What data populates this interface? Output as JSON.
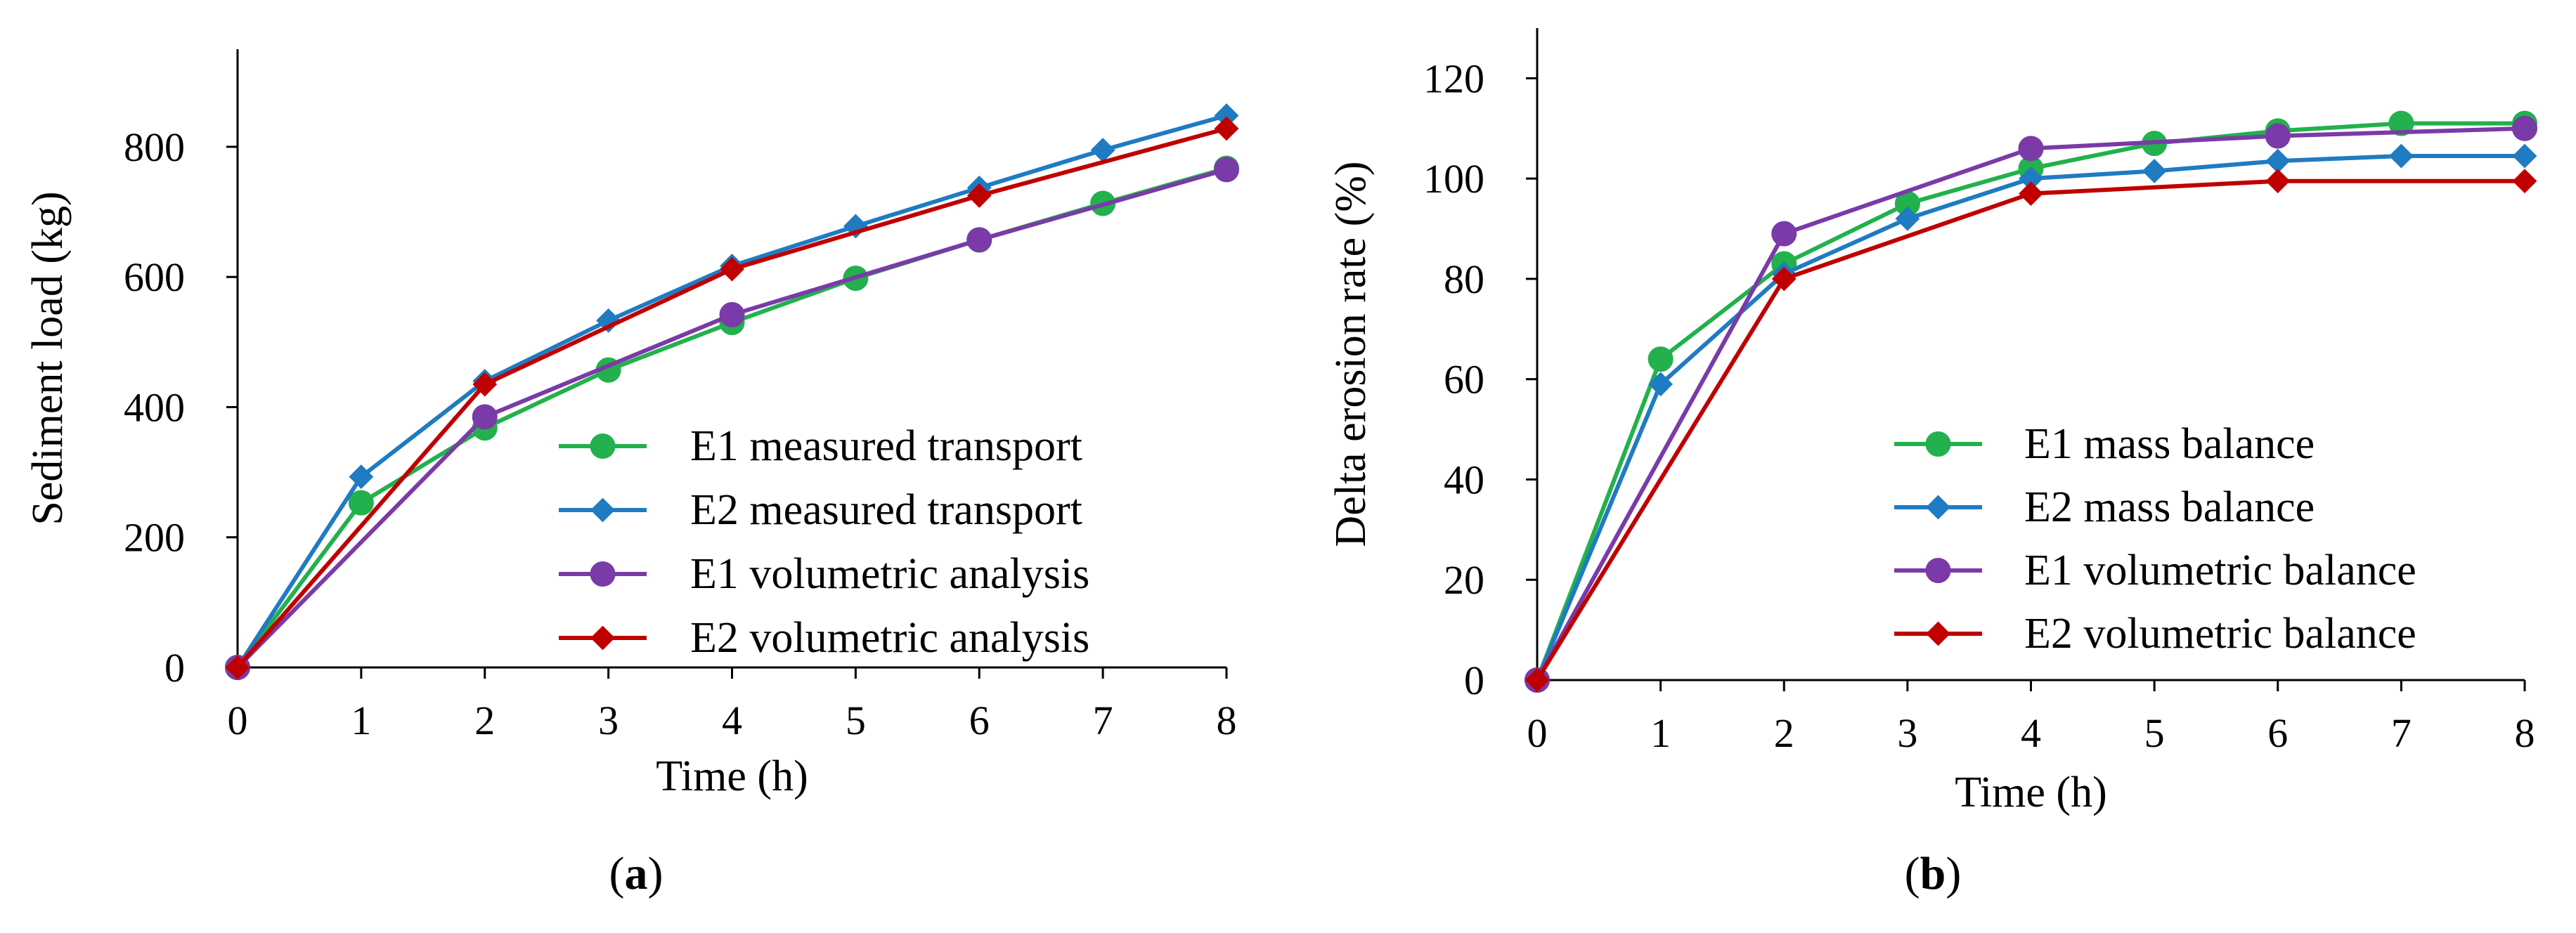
{
  "chart_data": [
    {
      "type": "line",
      "panel_label": "a",
      "xlabel": "Time (h)",
      "ylabel": "Sediment load (kg)",
      "x": [
        0,
        1,
        2,
        3,
        4,
        5,
        6,
        7,
        8
      ],
      "xlim": [
        0,
        8
      ],
      "ylim": [
        0,
        950
      ],
      "yticks": [
        0,
        200,
        400,
        600,
        800
      ],
      "grid": false,
      "legend_position": "bottom-right",
      "series": [
        {
          "name": "E1 measured transport",
          "color": "#22b14c",
          "marker": "circle",
          "x": [
            0,
            1,
            2,
            3,
            4,
            5,
            6,
            7,
            8
          ],
          "values": [
            0,
            253,
            368,
            457,
            530,
            598,
            657,
            713,
            767
          ]
        },
        {
          "name": "E2 measured transport",
          "color": "#1f7bc2",
          "marker": "diamond",
          "x": [
            0,
            1,
            2,
            3,
            4,
            5,
            6,
            7,
            8
          ],
          "values": [
            0,
            293,
            440,
            533,
            617,
            678,
            737,
            795,
            848
          ]
        },
        {
          "name": "E1 volumetric analysis",
          "color": "#7a3aa8",
          "marker": "circle",
          "x": [
            0,
            2,
            4,
            6,
            8
          ],
          "values": [
            0,
            385,
            542,
            657,
            765
          ]
        },
        {
          "name": "E2 volumetric analysis",
          "color": "#c00000",
          "marker": "diamond",
          "x": [
            0,
            2,
            4,
            6,
            8
          ],
          "values": [
            0,
            435,
            612,
            725,
            828
          ]
        }
      ]
    },
    {
      "type": "line",
      "panel_label": "b",
      "xlabel": "Time (h)",
      "ylabel": "Delta erosion rate (%)",
      "x": [
        0,
        1,
        2,
        3,
        4,
        5,
        6,
        7,
        8
      ],
      "xlim": [
        0,
        8
      ],
      "ylim": [
        0,
        130
      ],
      "yticks": [
        0,
        20,
        40,
        60,
        80,
        100,
        120
      ],
      "grid": false,
      "legend_position": "bottom-right",
      "series": [
        {
          "name": "E1 mass balance",
          "color": "#22b14c",
          "marker": "circle",
          "x": [
            0,
            1,
            2,
            3,
            4,
            5,
            6,
            7,
            8
          ],
          "values": [
            0,
            64,
            83,
            95,
            102,
            107,
            109.5,
            111,
            111
          ]
        },
        {
          "name": "E2 mass balance",
          "color": "#1f7bc2",
          "marker": "diamond",
          "x": [
            0,
            1,
            2,
            3,
            4,
            5,
            6,
            7,
            8
          ],
          "values": [
            0,
            59,
            81,
            92,
            100,
            101.5,
            103.5,
            104.5,
            104.5
          ]
        },
        {
          "name": "E1 volumetric balance",
          "color": "#7a3aa8",
          "marker": "circle",
          "x": [
            0,
            2,
            4,
            6,
            8
          ],
          "values": [
            0,
            89,
            106,
            108.5,
            110
          ]
        },
        {
          "name": "E2 volumetric balance",
          "color": "#c00000",
          "marker": "diamond",
          "x": [
            0,
            2,
            4,
            6,
            8
          ],
          "values": [
            0,
            80,
            97,
            99.5,
            99.5
          ]
        }
      ]
    }
  ]
}
